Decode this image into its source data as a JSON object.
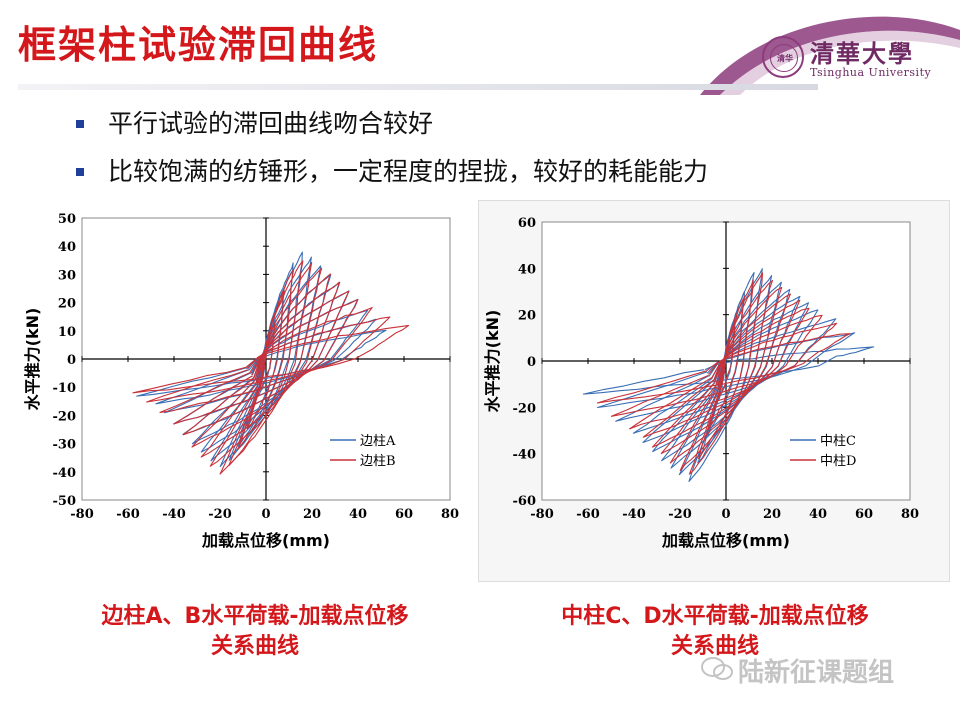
{
  "slide": {
    "title": "框架柱试验滞回曲线",
    "bullets": [
      "平行试验的滞回曲线吻合较好",
      "比较饱满的纺锤形，一定程度的捏拢，较好的耗能能力"
    ],
    "captions": {
      "left_line1": "边柱A、B水平荷载-加载点位移",
      "left_line2": "关系曲线",
      "right_line1": "中柱C、D水平荷载-加载点位移",
      "right_line2": "关系曲线"
    },
    "logo": {
      "seal_text": "清华",
      "chinese": "清華大學",
      "english": "Tsinghua University"
    },
    "watermark": "陆新征课题组",
    "colors": {
      "title_red": "#d4171b",
      "bullet_blue": "#1f3f9a",
      "series_blue": "#3a6fb5",
      "series_red": "#c8323a",
      "tsinghua_purple": "#6f2a64"
    }
  },
  "chart_data": [
    {
      "type": "line",
      "title": "",
      "xlabel": "加载点位移(mm)",
      "ylabel": "水平推力(kN)",
      "xlim": [
        -80,
        80
      ],
      "ylim": [
        -50,
        50
      ],
      "xticks": [
        -80,
        -60,
        -40,
        -20,
        0,
        20,
        40,
        60,
        80
      ],
      "yticks": [
        -50,
        -40,
        -30,
        -20,
        -10,
        0,
        10,
        20,
        30,
        40,
        50
      ],
      "xtick_labels": [
        "-80",
        "-60",
        "-40",
        "-20",
        "0",
        "20",
        "40",
        "60",
        "80"
      ],
      "ytick_labels": [
        "-50",
        "-40",
        "-30",
        "-20",
        "-10",
        "0",
        "10",
        "20",
        "30",
        "40",
        "50"
      ],
      "legend_position": "bottom-right",
      "series": [
        {
          "name": "边柱A",
          "color": "#3a6fb5",
          "hysteresis": {
            "cycles": [
              {
                "d_pos": 4,
                "f_pos": 14,
                "d_neg": -4,
                "f_neg": -14
              },
              {
                "d_pos": 8,
                "f_pos": 25,
                "d_neg": -8,
                "f_neg": -24
              },
              {
                "d_pos": 12,
                "f_pos": 34,
                "d_neg": -12,
                "f_neg": -31
              },
              {
                "d_pos": 16,
                "f_pos": 38,
                "d_neg": -16,
                "f_neg": -36
              },
              {
                "d_pos": 20,
                "f_pos": 36,
                "d_neg": -20,
                "f_neg": -38
              },
              {
                "d_pos": 24,
                "f_pos": 33,
                "d_neg": -24,
                "f_neg": -36
              },
              {
                "d_pos": 28,
                "f_pos": 30,
                "d_neg": -28,
                "f_neg": -33
              },
              {
                "d_pos": 32,
                "f_pos": 27,
                "d_neg": -32,
                "f_neg": -30
              },
              {
                "d_pos": 36,
                "f_pos": 24,
                "d_neg": -36,
                "f_neg": -27
              },
              {
                "d_pos": 40,
                "f_pos": 21,
                "d_neg": -40,
                "f_neg": -23
              },
              {
                "d_pos": 44,
                "f_pos": 17,
                "d_neg": -44,
                "f_neg": -19
              },
              {
                "d_pos": 48,
                "f_pos": 14,
                "d_neg": -48,
                "f_neg": -16
              },
              {
                "d_pos": 52,
                "f_pos": 10,
                "d_neg": -56,
                "f_neg": -13
              }
            ]
          }
        },
        {
          "name": "边柱B",
          "color": "#c8323a",
          "hysteresis": {
            "cycles": [
              {
                "d_pos": 4,
                "f_pos": 13,
                "d_neg": -4,
                "f_neg": -13
              },
              {
                "d_pos": 8,
                "f_pos": 24,
                "d_neg": -8,
                "f_neg": -25
              },
              {
                "d_pos": 12,
                "f_pos": 32,
                "d_neg": -12,
                "f_neg": -32
              },
              {
                "d_pos": 16,
                "f_pos": 35,
                "d_neg": -16,
                "f_neg": -38
              },
              {
                "d_pos": 20,
                "f_pos": 34,
                "d_neg": -20,
                "f_neg": -41
              },
              {
                "d_pos": 24,
                "f_pos": 32,
                "d_neg": -24,
                "f_neg": -38
              },
              {
                "d_pos": 28,
                "f_pos": 30,
                "d_neg": -28,
                "f_neg": -35
              },
              {
                "d_pos": 32,
                "f_pos": 27,
                "d_neg": -32,
                "f_neg": -31
              },
              {
                "d_pos": 36,
                "f_pos": 24,
                "d_neg": -36,
                "f_neg": -27
              },
              {
                "d_pos": 40,
                "f_pos": 21,
                "d_neg": -40,
                "f_neg": -23
              },
              {
                "d_pos": 46,
                "f_pos": 18,
                "d_neg": -46,
                "f_neg": -19
              },
              {
                "d_pos": 54,
                "f_pos": 15,
                "d_neg": -52,
                "f_neg": -15
              },
              {
                "d_pos": 62,
                "f_pos": 12,
                "d_neg": -58,
                "f_neg": -12
              }
            ]
          }
        }
      ]
    },
    {
      "type": "line",
      "title": "",
      "xlabel": "加载点位移(mm)",
      "ylabel": "水平推力(kN)",
      "xlim": [
        -80,
        80
      ],
      "ylim": [
        -60,
        60
      ],
      "xticks": [
        -80,
        -60,
        -40,
        -20,
        0,
        20,
        40,
        60,
        80
      ],
      "yticks": [
        -60,
        -40,
        -20,
        0,
        20,
        40,
        60
      ],
      "xtick_labels": [
        "-80",
        "-60",
        "-40",
        "-20",
        "0",
        "20",
        "40",
        "60",
        "80"
      ],
      "ytick_labels": [
        "-60",
        "-40",
        "-20",
        "0",
        "20",
        "40",
        "60"
      ],
      "legend_position": "bottom-right",
      "series": [
        {
          "name": "中柱C",
          "color": "#3a6fb5",
          "hysteresis": {
            "cycles": [
              {
                "d_pos": 4,
                "f_pos": 18,
                "d_neg": -4,
                "f_neg": -18
              },
              {
                "d_pos": 8,
                "f_pos": 30,
                "d_neg": -8,
                "f_neg": -32
              },
              {
                "d_pos": 12,
                "f_pos": 38,
                "d_neg": -12,
                "f_neg": -44
              },
              {
                "d_pos": 16,
                "f_pos": 40,
                "d_neg": -16,
                "f_neg": -52
              },
              {
                "d_pos": 20,
                "f_pos": 37,
                "d_neg": -20,
                "f_neg": -49
              },
              {
                "d_pos": 24,
                "f_pos": 34,
                "d_neg": -24,
                "f_neg": -46
              },
              {
                "d_pos": 28,
                "f_pos": 31,
                "d_neg": -28,
                "f_neg": -43
              },
              {
                "d_pos": 32,
                "f_pos": 28,
                "d_neg": -32,
                "f_neg": -39
              },
              {
                "d_pos": 36,
                "f_pos": 25,
                "d_neg": -36,
                "f_neg": -35
              },
              {
                "d_pos": 40,
                "f_pos": 22,
                "d_neg": -40,
                "f_neg": -31
              },
              {
                "d_pos": 48,
                "f_pos": 18,
                "d_neg": -48,
                "f_neg": -26
              },
              {
                "d_pos": 56,
                "f_pos": 12,
                "d_neg": -56,
                "f_neg": -20
              },
              {
                "d_pos": 64,
                "f_pos": 6,
                "d_neg": -62,
                "f_neg": -14
              }
            ]
          }
        },
        {
          "name": "中柱D",
          "color": "#c8323a",
          "hysteresis": {
            "cycles": [
              {
                "d_pos": 4,
                "f_pos": 17,
                "d_neg": -4,
                "f_neg": -17
              },
              {
                "d_pos": 8,
                "f_pos": 28,
                "d_neg": -8,
                "f_neg": -30
              },
              {
                "d_pos": 12,
                "f_pos": 35,
                "d_neg": -12,
                "f_neg": -42
              },
              {
                "d_pos": 16,
                "f_pos": 38,
                "d_neg": -16,
                "f_neg": -49
              },
              {
                "d_pos": 20,
                "f_pos": 35,
                "d_neg": -20,
                "f_neg": -47
              },
              {
                "d_pos": 24,
                "f_pos": 32,
                "d_neg": -24,
                "f_neg": -44
              },
              {
                "d_pos": 28,
                "f_pos": 29,
                "d_neg": -28,
                "f_neg": -40
              },
              {
                "d_pos": 32,
                "f_pos": 26,
                "d_neg": -32,
                "f_neg": -37
              },
              {
                "d_pos": 36,
                "f_pos": 23,
                "d_neg": -36,
                "f_neg": -33
              },
              {
                "d_pos": 42,
                "f_pos": 20,
                "d_neg": -42,
                "f_neg": -29
              },
              {
                "d_pos": 48,
                "f_pos": 16,
                "d_neg": -50,
                "f_neg": -24
              },
              {
                "d_pos": 54,
                "f_pos": 12,
                "d_neg": -56,
                "f_neg": -18
              }
            ]
          }
        }
      ]
    }
  ]
}
